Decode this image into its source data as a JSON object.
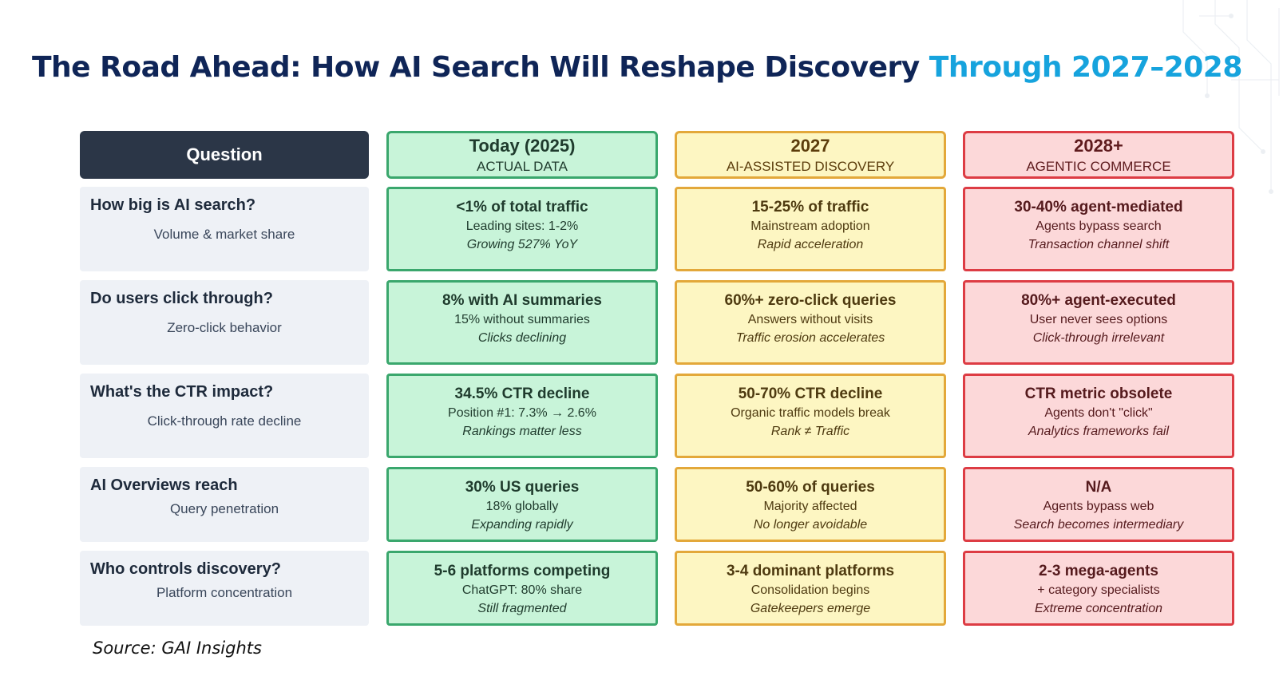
{
  "title": {
    "main": "The Road Ahead: How AI Search Will Reshape Discovery",
    "accent": "Through 2027–2028"
  },
  "colors": {
    "title": "#0f2557",
    "accent": "#16a3dd",
    "today": "#3aa76d",
    "y2027": "#e3a83a",
    "y2028": "#dd3c44"
  },
  "header": {
    "question": "Question",
    "today": {
      "title": "Today (2025)",
      "subtitle": "ACTUAL DATA"
    },
    "y2027": {
      "title": "2027",
      "subtitle": "AI-ASSISTED DISCOVERY"
    },
    "y2028": {
      "title": "2028+",
      "subtitle": "AGENTIC COMMERCE"
    }
  },
  "rows": [
    {
      "question": "How big is AI search?",
      "subtitle": "Volume & market share",
      "today": {
        "main": "<1% of total traffic",
        "detail": "Leading sites: 1-2%",
        "note": "Growing 527% YoY"
      },
      "y2027": {
        "main": "15-25% of traffic",
        "detail": "Mainstream adoption",
        "note": "Rapid acceleration"
      },
      "y2028": {
        "main": "30-40% agent-mediated",
        "detail": "Agents bypass search",
        "note": "Transaction channel shift"
      }
    },
    {
      "question": "Do users click through?",
      "subtitle": "Zero-click behavior",
      "today": {
        "main": "8% with AI summaries",
        "detail": "15% without summaries",
        "note": "Clicks declining"
      },
      "y2027": {
        "main": "60%+ zero-click queries",
        "detail": "Answers without visits",
        "note": "Traffic erosion accelerates"
      },
      "y2028": {
        "main": "80%+ agent-executed",
        "detail": "User never sees options",
        "note": "Click-through irrelevant"
      }
    },
    {
      "question": "What's the CTR impact?",
      "subtitle": "Click-through rate decline",
      "today": {
        "main": "34.5% CTR decline",
        "detail": "Position #1: 7.3% → 2.6%",
        "note": "Rankings matter less"
      },
      "y2027": {
        "main": "50-70% CTR decline",
        "detail": "Organic traffic models break",
        "note": "Rank ≠ Traffic"
      },
      "y2028": {
        "main": "CTR metric obsolete",
        "detail": "Agents don't \"click\"",
        "note": "Analytics frameworks fail"
      }
    },
    {
      "question": "AI Overviews reach",
      "subtitle": "Query penetration",
      "today": {
        "main": "30% US queries",
        "detail": "18% globally",
        "note": "Expanding rapidly"
      },
      "y2027": {
        "main": "50-60% of queries",
        "detail": "Majority affected",
        "note": "No longer avoidable"
      },
      "y2028": {
        "main": "N/A",
        "detail": "Agents bypass web",
        "note": "Search becomes intermediary"
      }
    },
    {
      "question": "Who controls discovery?",
      "subtitle": "Platform concentration",
      "today": {
        "main": "5-6 platforms competing",
        "detail": "ChatGPT: 80% share",
        "note": "Still fragmented"
      },
      "y2027": {
        "main": "3-4 dominant platforms",
        "detail": "Consolidation begins",
        "note": "Gatekeepers emerge"
      },
      "y2028": {
        "main": "2-3 mega-agents",
        "detail": "+ category specialists",
        "note": "Extreme concentration"
      }
    }
  ],
  "source": "Source: GAI Insights"
}
